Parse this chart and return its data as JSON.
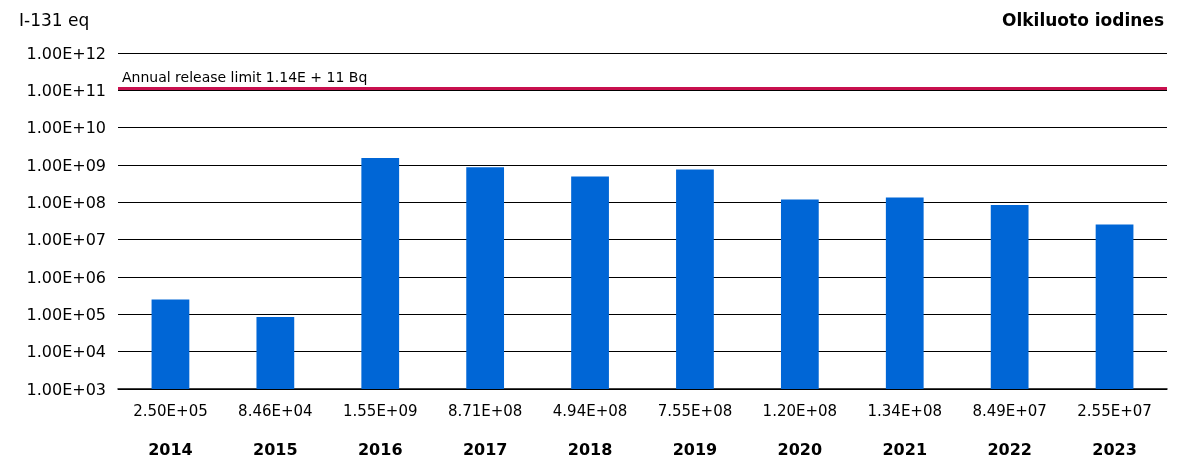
{
  "chart_data": {
    "type": "bar",
    "title": "Olkiluoto iodines",
    "ylabel": "I-131 eq",
    "categories": [
      "2014",
      "2015",
      "2016",
      "2017",
      "2018",
      "2019",
      "2020",
      "2021",
      "2022",
      "2023"
    ],
    "values": [
      250000,
      84600,
      1550000000,
      871000000,
      494000000,
      755000000,
      120000000,
      134000000,
      84900000,
      25500000
    ],
    "value_labels": [
      "2.50E+05",
      "8.46E+04",
      "1.55E+09",
      "8.71E+08",
      "4.94E+08",
      "7.55E+08",
      "1.20E+08",
      "1.34E+08",
      "8.49E+07",
      "2.55E+07"
    ],
    "color": "#0066d6",
    "log": "y",
    "ylim": [
      1000,
      1000000000000
    ],
    "yticks": [
      {
        "value": 1000,
        "label": "1.00E+03"
      },
      {
        "value": 10000,
        "label": "1.00E+04"
      },
      {
        "value": 100000,
        "label": "1.00E+05"
      },
      {
        "value": 1000000,
        "label": "1.00E+06"
      },
      {
        "value": 10000000,
        "label": "1.00E+07"
      },
      {
        "value": 100000000,
        "label": "1.00E+08"
      },
      {
        "value": 1000000000,
        "label": "1.00E+09"
      },
      {
        "value": 10000000000,
        "label": "1.00E+10"
      },
      {
        "value": 100000000000,
        "label": "1.00E+11"
      },
      {
        "value": 1000000000000,
        "label": "1.00E+12"
      }
    ],
    "ref_lines": [
      {
        "axis": "y",
        "value": 114000000000,
        "label": "Annual release limit 1.14E + 11 Bq",
        "color": "#c8104e"
      }
    ],
    "grid": "y"
  }
}
